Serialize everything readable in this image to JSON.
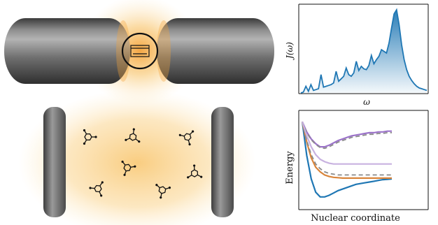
{
  "colors": {
    "glow": "#f6b54a",
    "mirror_dark": "#4a4a4a",
    "mirror_light": "#9a9a9a",
    "spectrum": "#1f77b4",
    "pes_ground": "#1f77b4",
    "pes_orange": "#d9853b",
    "pes_purple": "#9b72c9",
    "pes_lightpurple": "#c8b2e0",
    "pes_dashed": "#8a8a8a"
  },
  "spectrum_plot": {
    "ylabel": "J(ω)",
    "xlabel": "ω"
  },
  "pes_plot": {
    "ylabel": "Energy",
    "xlabel": "Nuclear coordinate"
  },
  "chart_data": [
    {
      "type": "area",
      "title": "",
      "xlabel": "ω",
      "ylabel": "J(ω)",
      "x": [
        0.0,
        0.02,
        0.04,
        0.06,
        0.08,
        0.1,
        0.12,
        0.14,
        0.16,
        0.18,
        0.2,
        0.22,
        0.24,
        0.26,
        0.28,
        0.3,
        0.32,
        0.34,
        0.36,
        0.38,
        0.4,
        0.42,
        0.44,
        0.46,
        0.48,
        0.5,
        0.52,
        0.54,
        0.56,
        0.58,
        0.6,
        0.62,
        0.64,
        0.66,
        0.68,
        0.7,
        0.72,
        0.74,
        0.76,
        0.78,
        0.8,
        0.82,
        0.84,
        0.86,
        0.88,
        0.9,
        0.92,
        0.94,
        0.96,
        0.98,
        1.0
      ],
      "series": [
        {
          "values": [
            0.0,
            0.01,
            0.08,
            0.02,
            0.1,
            0.03,
            0.04,
            0.05,
            0.22,
            0.07,
            0.08,
            0.09,
            0.1,
            0.12,
            0.26,
            0.14,
            0.17,
            0.2,
            0.3,
            0.22,
            0.2,
            0.24,
            0.38,
            0.27,
            0.32,
            0.29,
            0.28,
            0.33,
            0.45,
            0.35,
            0.4,
            0.44,
            0.52,
            0.5,
            0.48,
            0.6,
            0.78,
            0.95,
            1.0,
            0.82,
            0.58,
            0.4,
            0.28,
            0.2,
            0.15,
            0.11,
            0.08,
            0.06,
            0.05,
            0.04,
            0.03
          ]
        }
      ]
    },
    {
      "type": "line",
      "title": "",
      "xlabel": "Nuclear coordinate",
      "ylabel": "Energy",
      "x": [
        0.0,
        0.05,
        0.1,
        0.15,
        0.2,
        0.25,
        0.3,
        0.35,
        0.4,
        0.45,
        0.5,
        0.55,
        0.6,
        0.65,
        0.7,
        0.75,
        0.8,
        0.85,
        0.9,
        0.95,
        1.0
      ],
      "series": [
        {
          "values": [
            0.98,
            0.55,
            0.25,
            0.08,
            0.02,
            0.02,
            0.04,
            0.07,
            0.1,
            0.12,
            0.14,
            0.16,
            0.18,
            0.19,
            0.2,
            0.21,
            0.22,
            0.23,
            0.24,
            0.245,
            0.25
          ],
          "style": "solid",
          "color": "#1f77b4"
        },
        {
          "values": [
            0.98,
            0.72,
            0.52,
            0.4,
            0.34,
            0.3,
            0.28,
            0.27,
            0.265,
            0.26,
            0.26,
            0.26,
            0.26,
            0.26,
            0.26,
            0.26,
            0.26,
            0.26,
            0.26,
            0.26,
            0.26
          ],
          "style": "solid",
          "color": "#d9853b"
        },
        {
          "values": [
            0.98,
            0.85,
            0.76,
            0.7,
            0.66,
            0.66,
            0.68,
            0.71,
            0.74,
            0.76,
            0.78,
            0.8,
            0.81,
            0.82,
            0.83,
            0.84,
            0.84,
            0.85,
            0.85,
            0.86,
            0.86
          ],
          "style": "solid",
          "color": "#9b72c9"
        },
        {
          "values": [
            0.98,
            0.74,
            0.56,
            0.44,
            0.38,
            0.34,
            0.32,
            0.31,
            0.3,
            0.3,
            0.3,
            0.3,
            0.3,
            0.3,
            0.3,
            0.3,
            0.3,
            0.3,
            0.3,
            0.3,
            0.3
          ],
          "style": "dashed",
          "color": "#8a8a8a"
        },
        {
          "values": [
            0.98,
            0.84,
            0.75,
            0.69,
            0.65,
            0.64,
            0.66,
            0.69,
            0.72,
            0.74,
            0.76,
            0.78,
            0.79,
            0.8,
            0.81,
            0.82,
            0.82,
            0.83,
            0.83,
            0.84,
            0.84
          ],
          "style": "dashed",
          "color": "#8a8a8a"
        },
        {
          "values": [
            0.98,
            0.8,
            0.66,
            0.56,
            0.5,
            0.47,
            0.45,
            0.44,
            0.44,
            0.44,
            0.44,
            0.44,
            0.44,
            0.44,
            0.44,
            0.44,
            0.44,
            0.44,
            0.44,
            0.44,
            0.44
          ],
          "style": "solid",
          "color": "#c8b2e0"
        }
      ]
    }
  ]
}
